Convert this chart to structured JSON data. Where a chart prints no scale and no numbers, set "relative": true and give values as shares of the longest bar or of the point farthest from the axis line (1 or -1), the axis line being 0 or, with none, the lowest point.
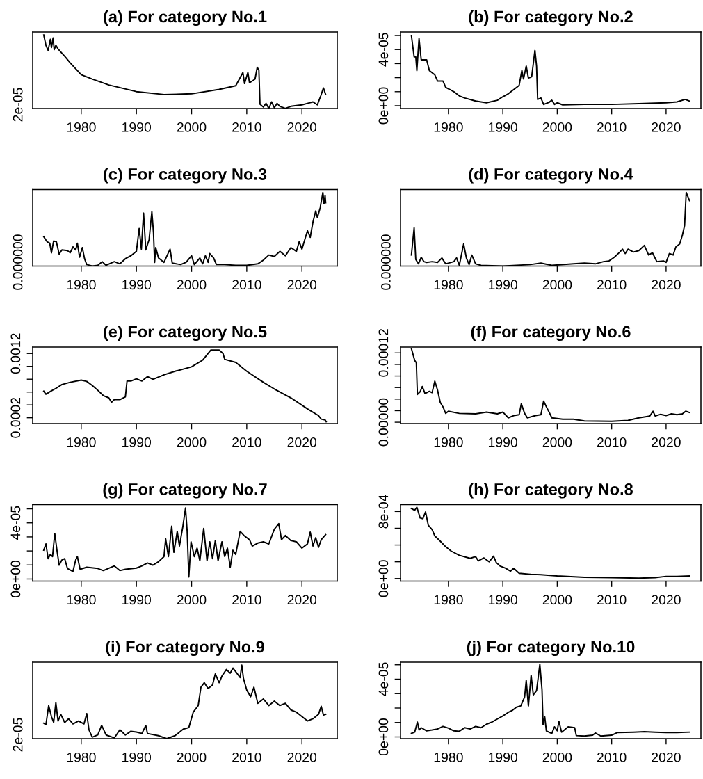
{
  "chart_data": [
    {
      "type": "line",
      "title": "(a) For category No.1",
      "relative": true,
      "annotations": [
        "2e-05"
      ],
      "xlim": [
        1971.2,
        2026.4
      ],
      "xticks": [
        1980,
        1990,
        2000,
        2010,
        2020
      ],
      "x": [
        1973.2,
        1973.6,
        1974.0,
        1974.4,
        1974.6,
        1974.9,
        1975.1,
        1975.4,
        1975.8,
        1977,
        1978,
        1980,
        1982,
        1985,
        1990,
        1995,
        2000,
        2005,
        2008,
        2009.3,
        2009.6,
        2010.2,
        2010.5,
        2011.5,
        2011.9,
        2012.2,
        2012.4,
        2013,
        2013.5,
        2014,
        2014.5,
        2015,
        2015.5,
        2016,
        2017,
        2018,
        2019,
        2020,
        2021,
        2022,
        2022.8,
        2023.4,
        2023.9,
        2024.3
      ],
      "series": [
        {
          "color": "#000000",
          "values": [
            1,
            0.86,
            0.79,
            0.94,
            0.83,
            0.96,
            0.8,
            0.86,
            0.81,
            0.71,
            0.62,
            0.46,
            0.4,
            0.32,
            0.23,
            0.19,
            0.2,
            0.26,
            0.31,
            0.49,
            0.34,
            0.49,
            0.35,
            0.4,
            0.56,
            0.52,
            0.06,
            0.02,
            0.07,
            0,
            0.09,
            0.01,
            0.07,
            0.03,
            0,
            0.03,
            0.04,
            0.05,
            0.07,
            0.09,
            0.05,
            0.17,
            0.28,
            0.19
          ]
        }
      ]
    },
    {
      "type": "line",
      "title": "(b) For category No.2",
      "xlim": [
        1971.2,
        2026.4
      ],
      "xticks": [
        1980,
        1990,
        2000,
        2010,
        2020
      ],
      "ylim": [
        -2e-06,
        5.25e-05
      ],
      "yticks": [
        {
          "value": 0,
          "label": "0e+00"
        },
        {
          "value": 1e-05,
          "label": null
        },
        {
          "value": 2e-05,
          "label": null
        },
        {
          "value": 3e-05,
          "label": null
        },
        {
          "value": 4e-05,
          "label": "4e-05"
        },
        {
          "value": 5e-05,
          "label": null
        }
      ],
      "x": [
        1973.2,
        1973.7,
        1974.0,
        1974.2,
        1974.6,
        1975.0,
        1976,
        1976.5,
        1977.5,
        1978.0,
        1979,
        1979.5,
        1980.3,
        1981,
        1982,
        1983,
        1985,
        1987,
        1989,
        1990,
        1991,
        1992,
        1993,
        1993.5,
        1993.8,
        1994.3,
        1994.7,
        1995.3,
        1995.9,
        1996.2,
        1996.4,
        1997,
        1997.5,
        1998.5,
        1999,
        1999.5,
        2000,
        2001,
        2005,
        2010,
        2015,
        2020,
        2022,
        2023.5,
        2024.3
      ],
      "series": [
        {
          "color": "#000000",
          "values": [
            5e-05,
            3.48e-05,
            3.48e-05,
            2.5e-05,
            4.79e-05,
            3.27e-05,
            3.27e-05,
            2.5e-05,
            2.2e-05,
            1.76e-05,
            1.76e-05,
            1.3e-05,
            1.15e-05,
            1e-05,
            7e-06,
            5.5e-06,
            3.3e-06,
            2.1e-06,
            3.9e-06,
            6.4e-06,
            8.5e-06,
            1.15e-05,
            1.45e-05,
            2.52e-05,
            1.9e-05,
            2.82e-05,
            1.97e-05,
            2.06e-05,
            3.94e-05,
            2.82e-05,
            4.5e-06,
            5.5e-06,
            9e-07,
            2.4e-06,
            3.9e-06,
            9e-07,
            2.1e-06,
            6e-07,
            9e-07,
            9e-07,
            1.5e-06,
            2.1e-06,
            2.7e-06,
            4.5e-06,
            3.3e-06
          ]
        }
      ]
    },
    {
      "type": "line",
      "title": "(c) For category No.3",
      "relative": true,
      "annotations": [
        "0.000000"
      ],
      "xlim": [
        1971.2,
        2026.4
      ],
      "xticks": [
        1980,
        1990,
        2000,
        2010,
        2020
      ],
      "x": [
        1973.2,
        1973.8,
        1974.3,
        1974.6,
        1975,
        1975.5,
        1976,
        1976.5,
        1977.5,
        1978,
        1978.5,
        1979,
        1979.3,
        1979.7,
        1980.2,
        1980.6,
        1981,
        1982,
        1983,
        1983.8,
        1984.5,
        1986,
        1987,
        1988,
        1989,
        1990,
        1990.5,
        1990.9,
        1991.3,
        1991.7,
        1992.3,
        1992.8,
        1993.1,
        1993.3,
        1993.5,
        1994,
        1995,
        1996.1,
        1996.5,
        1998,
        1999,
        2000,
        2000.5,
        2001.5,
        2002,
        2002.5,
        2003,
        2003.3,
        2004,
        2004.5,
        2006,
        2008,
        2010,
        2012,
        2013,
        2014,
        2015,
        2016,
        2017,
        2018,
        2019,
        2019.5,
        2020,
        2021,
        2021.5,
        2022,
        2022.5,
        2022.8,
        2023.3,
        2023.8,
        2024,
        2024.2,
        2024.3
      ],
      "series": [
        {
          "color": "#000000",
          "values": [
            0.4,
            0.33,
            0.31,
            0.18,
            0.34,
            0.33,
            0.16,
            0.22,
            0.21,
            0.18,
            0.26,
            0.22,
            0.31,
            0.12,
            0.25,
            0.1,
            0.02,
            0,
            0.01,
            0.06,
            0.01,
            0.06,
            0.03,
            0.1,
            0.14,
            0.2,
            0.51,
            0.23,
            0.72,
            0.22,
            0.36,
            0.74,
            0.45,
            0.05,
            0.25,
            0.11,
            0.05,
            0.23,
            0.04,
            0.02,
            0.05,
            0.14,
            0.02,
            0.11,
            0.03,
            0.14,
            0.05,
            0.17,
            0.11,
            0.02,
            0.02,
            0.01,
            0.01,
            0.03,
            0.08,
            0.15,
            0.13,
            0.2,
            0.14,
            0.25,
            0.2,
            0.33,
            0.23,
            0.48,
            0.39,
            0.6,
            0.75,
            0.66,
            0.79,
            1,
            0.85,
            0.96,
            0.86
          ]
        }
      ]
    },
    {
      "type": "line",
      "title": "(d) For category No.4",
      "relative": true,
      "annotations": [
        "0.000000"
      ],
      "xlim": [
        1971.2,
        2026.4
      ],
      "xticks": [
        1980,
        1990,
        2000,
        2010,
        2020
      ],
      "x": [
        1973.2,
        1973.7,
        1974.0,
        1974.5,
        1975,
        1975.5,
        1976,
        1977,
        1978,
        1978.8,
        1979.5,
        1981,
        1981.5,
        1982,
        1982.8,
        1983.3,
        1983.8,
        1984.3,
        1985,
        1986,
        1990,
        1995,
        1997,
        1999,
        2003,
        2005,
        2007,
        2008.5,
        2009.5,
        2010.5,
        2011.5,
        2012,
        2012.5,
        2013,
        2014,
        2015,
        2016,
        2016.8,
        2017.5,
        2018.3,
        2019.5,
        2020,
        2020.6,
        2021.3,
        2021.8,
        2022.5,
        2023,
        2023.4,
        2023.7,
        2024.3
      ],
      "series": [
        {
          "color": "#000000",
          "values": [
            0.15,
            0.52,
            0.09,
            0.03,
            0.12,
            0.06,
            0.05,
            0.06,
            0.05,
            0.11,
            0.03,
            0.06,
            0.11,
            0.01,
            0.3,
            0.11,
            0.02,
            0.15,
            0.03,
            0.01,
            0,
            0.02,
            0.04,
            0.01,
            0.03,
            0.04,
            0.03,
            0.06,
            0.07,
            0.12,
            0.19,
            0.23,
            0.17,
            0.23,
            0.19,
            0.21,
            0.28,
            0.15,
            0.18,
            0.06,
            0.07,
            0.05,
            0.17,
            0.15,
            0.26,
            0.3,
            0.42,
            0.55,
            1,
            0.89
          ]
        }
      ]
    },
    {
      "type": "line",
      "title": "(e) For category No.5",
      "xlim": [
        1971.2,
        2026.4
      ],
      "xticks": [
        1980,
        1990,
        2000,
        2010,
        2020
      ],
      "ylim": [
        0.00011,
        0.0013
      ],
      "yticks": [
        {
          "value": 0.0002,
          "label": "0.0002"
        },
        {
          "value": 0.0004,
          "label": null
        },
        {
          "value": 0.0006,
          "label": null
        },
        {
          "value": 0.0008,
          "label": null
        },
        {
          "value": 0.001,
          "label": null
        },
        {
          "value": 0.0012,
          "label": "0.0012"
        }
      ],
      "x": [
        1973.2,
        1973.6,
        1974.5,
        1975.5,
        1976.5,
        1978,
        1980,
        1981,
        1982,
        1983,
        1984,
        1985,
        1985.5,
        1986,
        1987,
        1988,
        1988.3,
        1989,
        1990,
        1991,
        1992,
        1993,
        1995,
        1997,
        2000,
        2002,
        2003.5,
        2005,
        2005.7,
        2006,
        2008,
        2010,
        2013,
        2015,
        2018,
        2021,
        2023,
        2023.5,
        2024.2,
        2024.4
      ],
      "series": [
        {
          "color": "#000000",
          "values": [
            0.000614,
            0.000566,
            0.000614,
            0.000662,
            0.000717,
            0.000752,
            0.000786,
            0.000766,
            0.000703,
            0.000628,
            0.000545,
            0.00051,
            0.000441,
            0.000483,
            0.000483,
            0.000524,
            0.000772,
            0.000772,
            0.000807,
            0.000772,
            0.000841,
            0.000799,
            0.000869,
            0.000924,
            0.000993,
            0.001097,
            0.001255,
            0.001255,
            0.0012,
            0.00111,
            0.001062,
            0.000924,
            0.000752,
            0.000648,
            0.00051,
            0.000338,
            0.000234,
            0.000179,
            0.000166,
            0.000138
          ]
        }
      ]
    },
    {
      "type": "line",
      "title": "(f) For category No.6",
      "xlim": [
        1971.2,
        2026.4
      ],
      "xticks": [
        1980,
        1990,
        2000,
        2010,
        2020
      ],
      "ylim": [
        -2.3e-06,
        0.00013
      ],
      "yticks": [
        {
          "value": 0,
          "label": "0.00000"
        },
        {
          "value": 2e-05,
          "label": null
        },
        {
          "value": 4e-05,
          "label": null
        },
        {
          "value": 6e-05,
          "label": null
        },
        {
          "value": 8e-05,
          "label": null
        },
        {
          "value": 0.0001,
          "label": null
        },
        {
          "value": 0.00012,
          "label": "0.00012"
        }
      ],
      "x": [
        1973.2,
        1973.8,
        1974.1,
        1974.3,
        1974.8,
        1975.2,
        1975.7,
        1976.5,
        1977,
        1977.5,
        1978,
        1978.5,
        1979,
        1979.5,
        1980,
        1982,
        1985,
        1987,
        1989,
        1990,
        1991,
        1992,
        1993,
        1993.4,
        1994,
        1994.5,
        1996,
        1997,
        1997.5,
        1998,
        1998.5,
        1999,
        2001,
        2003,
        2005,
        2010,
        2013,
        2015,
        2017,
        2017.6,
        2018,
        2019,
        2020,
        2021,
        2022,
        2023,
        2023.6,
        2024.3
      ],
      "series": [
        {
          "color": "#000000",
          "values": [
            0.0001275,
            0.000107,
            0.000103,
            4.8e-05,
            5.27e-05,
            6.18e-05,
            4.96e-05,
            5.34e-05,
            5.11e-05,
            7.1e-05,
            5.57e-05,
            3.44e-05,
            2.67e-05,
            1.53e-05,
            1.91e-05,
            1.53e-05,
            1.45e-05,
            1.76e-05,
            1.45e-05,
            1.76e-05,
            7.6e-06,
            1.15e-05,
            1.3e-05,
            3.2e-05,
            1.53e-05,
            7.6e-06,
            1.15e-05,
            1.3e-05,
            3.66e-05,
            2.67e-05,
            1.76e-05,
            7.6e-06,
            5.3e-06,
            5.3e-06,
            2.3e-06,
            1.5e-06,
            3.1e-06,
            7.6e-06,
            1.07e-05,
            1.91e-05,
            1.07e-05,
            1.37e-05,
            1.15e-05,
            1.45e-05,
            1.3e-05,
            1.45e-05,
            1.91e-05,
            1.68e-05
          ]
        }
      ]
    },
    {
      "type": "line",
      "title": "(g) For category No.7",
      "xlim": [
        1971.2,
        2026.4
      ],
      "xticks": [
        1980,
        1990,
        2000,
        2010,
        2020
      ],
      "ylim": [
        -1.5e-06,
        5.3e-05
      ],
      "yticks": [
        {
          "value": 0,
          "label": "0e+00"
        },
        {
          "value": 1e-05,
          "label": null
        },
        {
          "value": 2e-05,
          "label": null
        },
        {
          "value": 3e-05,
          "label": null
        },
        {
          "value": 4e-05,
          "label": "4e-05"
        },
        {
          "value": 5e-05,
          "label": null
        }
      ],
      "x": [
        1973.2,
        1973.6,
        1974.0,
        1974.4,
        1974.8,
        1975.2,
        1975.6,
        1976,
        1976.5,
        1977,
        1977.5,
        1978.5,
        1979,
        1979.3,
        1979.8,
        1981,
        1983,
        1984,
        1986,
        1987,
        1988,
        1990,
        1991,
        1992,
        1993,
        1994,
        1995,
        1995.3,
        1995.8,
        1996.4,
        1996.8,
        1997.4,
        1997.8,
        1998.4,
        1998.9,
        1999.2,
        1999.5,
        1999.9,
        2000.5,
        2001,
        2001.5,
        2002.2,
        2002.8,
        2003.3,
        2003.8,
        2004.3,
        2004.8,
        2005.5,
        2006,
        2006.5,
        2007,
        2007.5,
        2008,
        2008.8,
        2009.5,
        2010.5,
        2011,
        2012,
        2013,
        2014,
        2015,
        2015.8,
        2016.3,
        2017,
        2018,
        2019,
        2020,
        2021,
        2021.5,
        2022,
        2022.5,
        2023,
        2023.5,
        2024.3
      ],
      "series": [
        {
          "color": "#000000",
          "values": [
            2.05e-05,
            2.5e-05,
            1.45e-05,
            1.75e-05,
            1.6e-05,
            3.25e-05,
            2.05e-05,
            9.9e-06,
            1.36e-05,
            1.45e-05,
            7.5e-06,
            5.4e-06,
            1.36e-05,
            1.6e-05,
            6.9e-06,
            8.4e-06,
            7.5e-06,
            6e-06,
            9.3e-06,
            6e-06,
            6.9e-06,
            7.8e-06,
            9.3e-06,
            1.14e-05,
            9.9e-06,
            1.23e-05,
            1.6e-05,
            2.86e-05,
            1.6e-05,
            3.77e-05,
            1.9e-05,
            3.4e-05,
            2.35e-05,
            3.7e-05,
            5.06e-05,
            3.4e-05,
            1.5e-06,
            2.65e-05,
            1.6e-05,
            2.2e-05,
            1.3e-05,
            3.61e-05,
            1.3e-05,
            2.65e-05,
            1.45e-05,
            2.74e-05,
            1.3e-05,
            2.65e-05,
            1.6e-05,
            2.2e-05,
            8.4e-06,
            2.05e-05,
            1.75e-05,
            3.4e-05,
            3.1e-05,
            2.8e-05,
            2.35e-05,
            2.56e-05,
            2.65e-05,
            2.5e-05,
            3.55e-05,
            3.95e-05,
            2.8e-05,
            3.1e-05,
            2.74e-05,
            2.65e-05,
            2.2e-05,
            2.5e-05,
            3.34e-05,
            2.35e-05,
            2.95e-05,
            2.26e-05,
            2.8e-05,
            3.16e-05
          ]
        }
      ]
    },
    {
      "type": "line",
      "title": "(h) For category No.8",
      "xlim": [
        1971.2,
        2026.4
      ],
      "xticks": [
        1980,
        1990,
        2000,
        2010,
        2020
      ],
      "ylim": [
        -3.1e-05,
        0.000882
      ],
      "yticks": [
        {
          "value": 0,
          "label": "0e+00"
        },
        {
          "value": 0.0002,
          "label": null
        },
        {
          "value": 0.0004,
          "label": null
        },
        {
          "value": 0.0006,
          "label": null
        },
        {
          "value": 0.0008,
          "label": "8e-04"
        }
      ],
      "x": [
        1973.2,
        1973.8,
        1974.2,
        1974.8,
        1975.3,
        1975.8,
        1976.3,
        1977,
        1977.5,
        1978.5,
        1979.5,
        1980.5,
        1982,
        1984,
        1985,
        1985.5,
        1986.5,
        1987.5,
        1988.3,
        1988.8,
        1989.5,
        1990.5,
        1991.4,
        1992,
        1993,
        1995,
        1997,
        2000,
        2005,
        2010,
        2015,
        2018,
        2020,
        2022,
        2024.3
      ],
      "series": [
        {
          "color": "#000000",
          "values": [
            0.000836,
            0.000815,
            0.000851,
            0.000723,
            0.000713,
            0.000795,
            0.000636,
            0.000585,
            0.000508,
            0.000446,
            0.000379,
            0.000328,
            0.000277,
            0.000241,
            0.000262,
            0.00021,
            0.000246,
            0.0002,
            0.000267,
            0.00019,
            0.000149,
            0.000123,
            8.7e-05,
            0.000123,
            6.2e-05,
            5.1e-05,
            4.6e-05,
            3.1e-05,
            1.5e-05,
            1e-05,
            5e-06,
            1e-05,
            2.6e-05,
            2.6e-05,
            3.1e-05
          ]
        }
      ]
    },
    {
      "type": "line",
      "title": "(i) For category No.9",
      "relative": true,
      "annotations": [
        "2e-05"
      ],
      "xlim": [
        1971.2,
        2026.4
      ],
      "xticks": [
        1980,
        1990,
        2000,
        2010,
        2020
      ],
      "x": [
        1973.2,
        1973.6,
        1974.1,
        1974.6,
        1975.0,
        1975.4,
        1975.8,
        1976.3,
        1977,
        1977.7,
        1978.5,
        1979.5,
        1980.5,
        1981,
        1981.4,
        1982,
        1983,
        1983.7,
        1984.5,
        1986,
        1987,
        1988,
        1989,
        1990,
        1991,
        1991.7,
        1992,
        1994,
        1995.5,
        1997,
        1998.5,
        1999.5,
        2000.3,
        2001.2,
        2001.7,
        2002.3,
        2003,
        2003.8,
        2004.3,
        2005,
        2005.5,
        2006.3,
        2007,
        2007.5,
        2008.3,
        2008.8,
        2009.1,
        2009.4,
        2010,
        2010.7,
        2011.3,
        2012,
        2013,
        2014,
        2015,
        2016,
        2017,
        2018,
        2019,
        2020,
        2021,
        2022,
        2023,
        2023.5,
        2023.9,
        2024.3
      ],
      "series": [
        {
          "color": "#000000",
          "values": [
            0.21,
            0.19,
            0.45,
            0.3,
            0.22,
            0.49,
            0.24,
            0.33,
            0.22,
            0.27,
            0.2,
            0.24,
            0.2,
            0.34,
            0.12,
            0.02,
            0.05,
            0.18,
            0.05,
            0.01,
            0.12,
            0.05,
            0.1,
            0.09,
            0.07,
            0.18,
            0.07,
            0.04,
            0,
            0.04,
            0.13,
            0.15,
            0.36,
            0.45,
            0.7,
            0.76,
            0.68,
            0.73,
            0.88,
            0.76,
            0.85,
            0.94,
            0.89,
            0.96,
            0.88,
            0.83,
            1,
            0.82,
            0.66,
            0.57,
            0.7,
            0.48,
            0.54,
            0.45,
            0.51,
            0.45,
            0.48,
            0.39,
            0.36,
            0.3,
            0.24,
            0.27,
            0.33,
            0.44,
            0.32,
            0.33
          ]
        }
      ]
    },
    {
      "type": "line",
      "title": "(j) For category No.10",
      "xlim": [
        1971.2,
        2026.4
      ],
      "xticks": [
        1980,
        1990,
        2000,
        2010,
        2020
      ],
      "ylim": [
        -1.2e-06,
        5.18e-05
      ],
      "yticks": [
        {
          "value": 0,
          "label": "0e+00"
        },
        {
          "value": 1e-05,
          "label": null
        },
        {
          "value": 2e-05,
          "label": null
        },
        {
          "value": 3e-05,
          "label": null
        },
        {
          "value": 4e-05,
          "label": "4e-05"
        },
        {
          "value": 5e-05,
          "label": null
        }
      ],
      "x": [
        1973.2,
        1973.8,
        1974.3,
        1974.6,
        1975,
        1976,
        1977,
        1978,
        1979,
        1980,
        1981,
        1982,
        1983,
        1984,
        1985,
        1986,
        1987,
        1988,
        1989,
        1990,
        1991,
        1991.8,
        1992.5,
        1993.3,
        1994,
        1994.3,
        1994.7,
        1995.2,
        1995.6,
        1996.2,
        1996.8,
        1997.2,
        1997.4,
        1997.7,
        1998,
        1999,
        1999.5,
        2000,
        2000.3,
        2000.8,
        2002,
        2003.2,
        2003.5,
        2005,
        2006.5,
        2007,
        2008,
        2010,
        2011,
        2014,
        2016,
        2018,
        2020,
        2022,
        2024.3
      ],
      "series": [
        {
          "color": "#000000",
          "values": [
            2.4e-06,
            3.3e-06,
            1.03e-05,
            4.8e-06,
            6.4e-06,
            4.2e-06,
            4.8e-06,
            5.5e-06,
            7.3e-06,
            6.1e-06,
            4.2e-06,
            3.9e-06,
            6.4e-06,
            5.5e-06,
            7.3e-06,
            6.4e-06,
            8.8e-06,
            1.03e-05,
            1.24e-05,
            1.45e-05,
            1.7e-05,
            1.85e-05,
            2.06e-05,
            2.15e-05,
            2.76e-05,
            3.91e-05,
            2.15e-05,
            4.27e-05,
            2.91e-05,
            3.21e-05,
            5.03e-05,
            3.27e-05,
            8.5e-06,
            1.39e-05,
            4.2e-06,
            2.4e-06,
            7e-06,
            4.2e-06,
            1.09e-05,
            3.3e-06,
            7e-06,
            6.4e-06,
            9e-07,
            6e-07,
            1.2e-06,
            2.7e-06,
            6e-07,
            1.2e-06,
            3e-06,
            3.3e-06,
            3.6e-06,
            3.3e-06,
            3e-06,
            3e-06,
            3.3e-06
          ]
        }
      ]
    }
  ]
}
